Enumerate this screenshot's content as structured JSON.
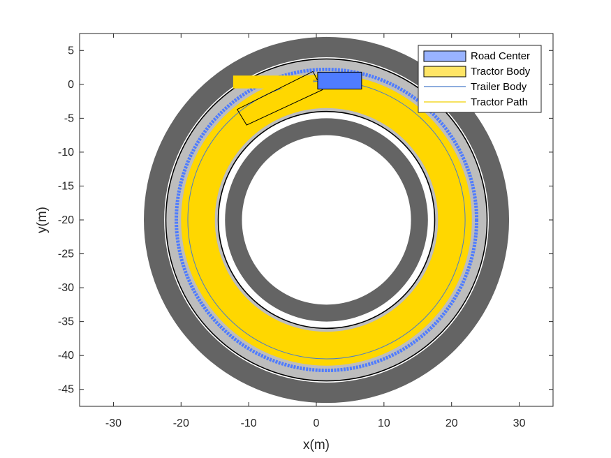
{
  "chart_data": {
    "type": "scatter",
    "xlabel": "x(m)",
    "ylabel": "y(m)",
    "xlim": [
      -35,
      35
    ],
    "ylim": [
      -47.5,
      7.5
    ],
    "xticks": [
      -30,
      -20,
      -10,
      0,
      10,
      20,
      30
    ],
    "yticks": [
      5,
      0,
      -5,
      -10,
      -15,
      -20,
      -25,
      -30,
      -35,
      -40,
      -45
    ],
    "grid": false,
    "legend_position": "top-right",
    "legend": [
      {
        "label": "Road Center",
        "kind": "patch",
        "color": "#99b3ff",
        "edge": "#000000"
      },
      {
        "label": "Tractor Body",
        "kind": "patch",
        "color": "#ffe566",
        "edge": "#000000"
      },
      {
        "label": "Trailer Body",
        "kind": "line",
        "color": "#4a7cc9"
      },
      {
        "label": "Tractor Path",
        "kind": "line",
        "color": "#f0d000"
      }
    ],
    "road": {
      "center": [
        1.5,
        -20
      ],
      "outer_shoulder_radius": 27,
      "outer_lane_edge_radius": 24,
      "road_surface_outer_radius": 23.5,
      "road_center_radius": 22,
      "road_surface_inner_radius": 17,
      "inner_lane_edge_radius": 16,
      "inner_shoulder_outer_radius": 15,
      "inner_shoulder_inner_radius": 12.5,
      "shoulder_color": "#646464",
      "road_color": "#bdbdbd",
      "swept_color": "#ffd700",
      "road_center_color": "#4f7cff"
    },
    "swept_area": {
      "outer_radius": 21.5,
      "inner_radius": 16.5
    },
    "paths": {
      "trailer_path_radius": 20.5,
      "trailer_path_color": "#4a7cc9",
      "tractor_path_color": "#f0d000"
    },
    "tractor": {
      "corners": [
        [
          0.2,
          1.8
        ],
        [
          6.7,
          1.8
        ],
        [
          6.7,
          -0.7
        ],
        [
          0.2,
          -0.7
        ]
      ],
      "color": "#4f7cff"
    },
    "trailer": {
      "corners": [
        [
          -0.5,
          1.9
        ],
        [
          0.9,
          -0.8
        ],
        [
          -10.3,
          -6.0
        ],
        [
          -11.7,
          -3.7
        ]
      ]
    },
    "partial_swept_patch": {
      "corners": [
        [
          -12.3,
          1.3
        ],
        [
          -0.5,
          1.3
        ],
        [
          -0.5,
          -0.6
        ],
        [
          -12.3,
          -0.6
        ]
      ]
    }
  }
}
